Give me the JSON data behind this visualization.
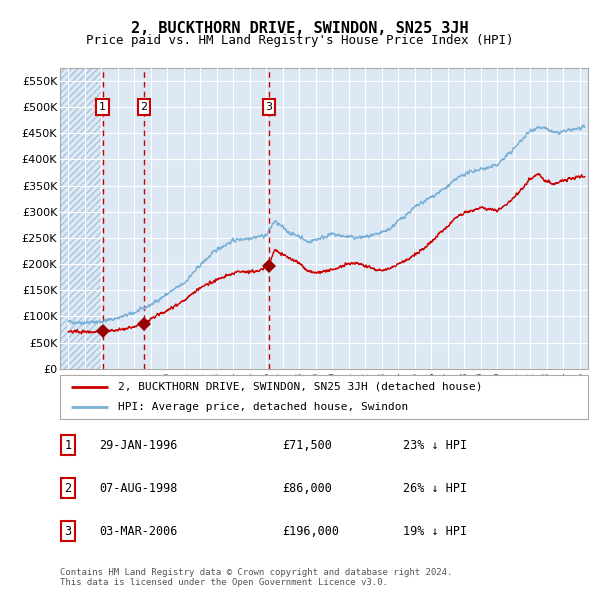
{
  "title": "2, BUCKTHORN DRIVE, SWINDON, SN25 3JH",
  "subtitle": "Price paid vs. HM Land Registry's House Price Index (HPI)",
  "title_fontsize": 11,
  "subtitle_fontsize": 9,
  "background_color": "#ffffff",
  "plot_bg_color": "#dce9f5",
  "hatch_color": "#b0c8e0",
  "grid_color": "#ffffff",
  "red_line_color": "#cc0000",
  "blue_line_color": "#7ab0d4",
  "sale_marker_color": "#990000",
  "dashed_line_color": "#cc0000",
  "label_box_color": "#cc0000",
  "ylim": [
    0,
    575000
  ],
  "yticks": [
    0,
    50000,
    100000,
    150000,
    200000,
    250000,
    300000,
    350000,
    400000,
    450000,
    500000,
    550000
  ],
  "ytick_labels": [
    "£0",
    "£50K",
    "£100K",
    "£150K",
    "£200K",
    "£250K",
    "£300K",
    "£350K",
    "£400K",
    "£450K",
    "£500K",
    "£550K"
  ],
  "xlim_start": 1993.5,
  "xlim_end": 2025.5,
  "xticks": [
    1994,
    1995,
    1996,
    1997,
    1998,
    1999,
    2000,
    2001,
    2002,
    2003,
    2004,
    2005,
    2006,
    2007,
    2008,
    2009,
    2010,
    2011,
    2012,
    2013,
    2014,
    2015,
    2016,
    2017,
    2018,
    2019,
    2020,
    2021,
    2022,
    2023,
    2024,
    2025
  ],
  "sales": [
    {
      "year": 1996.08,
      "price": 71500,
      "label": "1"
    },
    {
      "year": 1998.59,
      "price": 86000,
      "label": "2"
    },
    {
      "year": 2006.17,
      "price": 196000,
      "label": "3"
    }
  ],
  "legend_line1": "2, BUCKTHORN DRIVE, SWINDON, SN25 3JH (detached house)",
  "legend_line2": "HPI: Average price, detached house, Swindon",
  "table": [
    {
      "num": "1",
      "date": "29-JAN-1996",
      "price": "£71,500",
      "hpi": "23% ↓ HPI"
    },
    {
      "num": "2",
      "date": "07-AUG-1998",
      "price": "£86,000",
      "hpi": "26% ↓ HPI"
    },
    {
      "num": "3",
      "date": "03-MAR-2006",
      "price": "£196,000",
      "hpi": "19% ↓ HPI"
    }
  ],
  "footnote": "Contains HM Land Registry data © Crown copyright and database right 2024.\nThis data is licensed under the Open Government Licence v3.0.",
  "hatch_region_end": 1996.08,
  "hpi_anchors": [
    [
      1994.0,
      90000
    ],
    [
      1995.0,
      88000
    ],
    [
      1996.0,
      90000
    ],
    [
      1997.0,
      97000
    ],
    [
      1998.0,
      107000
    ],
    [
      1999.0,
      122000
    ],
    [
      2000.0,
      143000
    ],
    [
      2001.0,
      163000
    ],
    [
      2002.0,
      198000
    ],
    [
      2003.0,
      228000
    ],
    [
      2004.0,
      245000
    ],
    [
      2005.0,
      250000
    ],
    [
      2006.0,
      255000
    ],
    [
      2006.5,
      282000
    ],
    [
      2007.0,
      270000
    ],
    [
      2007.5,
      258000
    ],
    [
      2008.0,
      254000
    ],
    [
      2008.5,
      242000
    ],
    [
      2009.0,
      247000
    ],
    [
      2009.5,
      252000
    ],
    [
      2010.0,
      257000
    ],
    [
      2010.5,
      254000
    ],
    [
      2011.0,
      252000
    ],
    [
      2011.5,
      250000
    ],
    [
      2012.0,
      252000
    ],
    [
      2012.5,
      254000
    ],
    [
      2013.0,
      260000
    ],
    [
      2013.5,
      268000
    ],
    [
      2014.0,
      282000
    ],
    [
      2014.5,
      295000
    ],
    [
      2015.0,
      308000
    ],
    [
      2015.5,
      318000
    ],
    [
      2016.0,
      328000
    ],
    [
      2016.5,
      338000
    ],
    [
      2017.0,
      348000
    ],
    [
      2017.5,
      362000
    ],
    [
      2018.0,
      372000
    ],
    [
      2018.5,
      377000
    ],
    [
      2019.0,
      382000
    ],
    [
      2019.5,
      384000
    ],
    [
      2020.0,
      390000
    ],
    [
      2020.5,
      405000
    ],
    [
      2021.0,
      420000
    ],
    [
      2021.5,
      438000
    ],
    [
      2022.0,
      455000
    ],
    [
      2022.5,
      462000
    ],
    [
      2023.0,
      458000
    ],
    [
      2023.5,
      450000
    ],
    [
      2024.0,
      453000
    ],
    [
      2024.5,
      456000
    ],
    [
      2025.0,
      460000
    ]
  ],
  "red_anchors": [
    [
      1994.0,
      71000
    ],
    [
      1995.5,
      70500
    ],
    [
      1996.08,
      71500
    ],
    [
      1997.0,
      73000
    ],
    [
      1998.0,
      80000
    ],
    [
      1998.59,
      86000
    ],
    [
      1999.0,
      95000
    ],
    [
      2000.0,
      112000
    ],
    [
      2001.0,
      130000
    ],
    [
      2002.0,
      155000
    ],
    [
      2003.0,
      170000
    ],
    [
      2004.0,
      182000
    ],
    [
      2004.5,
      187000
    ],
    [
      2005.0,
      185000
    ],
    [
      2005.5,
      187000
    ],
    [
      2006.0,
      194000
    ],
    [
      2006.17,
      196000
    ],
    [
      2006.5,
      228000
    ],
    [
      2007.0,
      218000
    ],
    [
      2007.5,
      210000
    ],
    [
      2008.0,
      202000
    ],
    [
      2008.5,
      187000
    ],
    [
      2009.0,
      183000
    ],
    [
      2009.5,
      186000
    ],
    [
      2010.0,
      190000
    ],
    [
      2010.5,
      194000
    ],
    [
      2011.0,
      200000
    ],
    [
      2011.5,
      202000
    ],
    [
      2012.0,
      197000
    ],
    [
      2012.5,
      192000
    ],
    [
      2013.0,
      187000
    ],
    [
      2013.5,
      192000
    ],
    [
      2014.0,
      200000
    ],
    [
      2014.5,
      207000
    ],
    [
      2015.0,
      218000
    ],
    [
      2015.5,
      228000
    ],
    [
      2016.0,
      243000
    ],
    [
      2016.5,
      258000
    ],
    [
      2017.0,
      273000
    ],
    [
      2017.5,
      288000
    ],
    [
      2018.0,
      298000
    ],
    [
      2018.5,
      303000
    ],
    [
      2019.0,
      307000
    ],
    [
      2019.5,
      304000
    ],
    [
      2020.0,
      302000
    ],
    [
      2020.5,
      313000
    ],
    [
      2021.0,
      328000
    ],
    [
      2021.5,
      343000
    ],
    [
      2022.0,
      363000
    ],
    [
      2022.5,
      373000
    ],
    [
      2023.0,
      358000
    ],
    [
      2023.5,
      352000
    ],
    [
      2024.0,
      360000
    ],
    [
      2024.5,
      364000
    ],
    [
      2025.0,
      367000
    ]
  ]
}
